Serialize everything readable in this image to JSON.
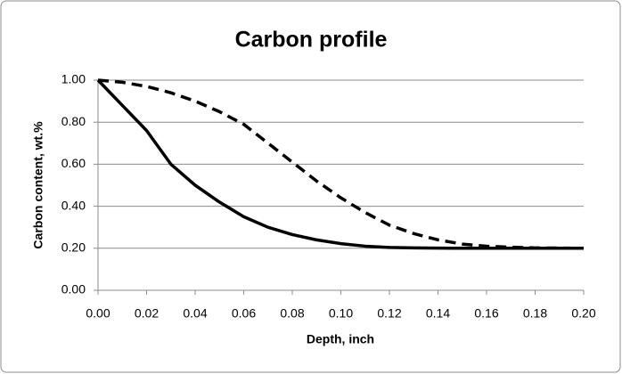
{
  "chart_data": {
    "type": "line",
    "title": "Carbon profile",
    "x_label": "Depth, inch",
    "y_label": "Carbon content, wt.%",
    "x": [
      0,
      0.01,
      0.02,
      0.03,
      0.04,
      0.05,
      0.06,
      0.07,
      0.08,
      0.09,
      0.1,
      0.11,
      0.12,
      0.13,
      0.14,
      0.15,
      0.16,
      0.17,
      0.18,
      0.19,
      0.2
    ],
    "series": [
      {
        "color": "#000000",
        "dash": false,
        "values": [
          1.0,
          0.88,
          0.76,
          0.6,
          0.5,
          0.42,
          0.35,
          0.3,
          0.265,
          0.24,
          0.222,
          0.21,
          0.204,
          0.202,
          0.201,
          0.2,
          0.2,
          0.2,
          0.2,
          0.2,
          0.2
        ]
      },
      {
        "color": "#000000",
        "dash": true,
        "values": [
          1.0,
          0.99,
          0.97,
          0.94,
          0.9,
          0.85,
          0.79,
          0.7,
          0.61,
          0.52,
          0.44,
          0.37,
          0.31,
          0.27,
          0.24,
          0.22,
          0.21,
          0.205,
          0.202,
          0.201,
          0.2
        ]
      }
    ],
    "xlim": [
      0,
      0.2
    ],
    "xticks": [
      {
        "value": 0,
        "label": "0.00"
      },
      {
        "value": 0.02,
        "label": "0.02"
      },
      {
        "value": 0.04,
        "label": "0.04"
      },
      {
        "value": 0.06,
        "label": "0.06"
      },
      {
        "value": 0.08,
        "label": "0.08"
      },
      {
        "value": 0.1,
        "label": "0.10"
      },
      {
        "value": 0.12,
        "label": "0.12"
      },
      {
        "value": 0.14,
        "label": "0.14"
      },
      {
        "value": 0.16,
        "label": "0.16"
      },
      {
        "value": 0.18,
        "label": "0.18"
      },
      {
        "value": 0.2,
        "label": "0.20"
      }
    ],
    "ylim": [
      0,
      1
    ],
    "yticks": [
      {
        "value": 0,
        "label": "0.00"
      },
      {
        "value": 0.2,
        "label": "0.20"
      },
      {
        "value": 0.4,
        "label": "0.40"
      },
      {
        "value": 0.6,
        "label": "0.60"
      },
      {
        "value": 0.8,
        "label": "0.80"
      },
      {
        "value": 1,
        "label": "1.00"
      }
    ],
    "grid": true
  }
}
